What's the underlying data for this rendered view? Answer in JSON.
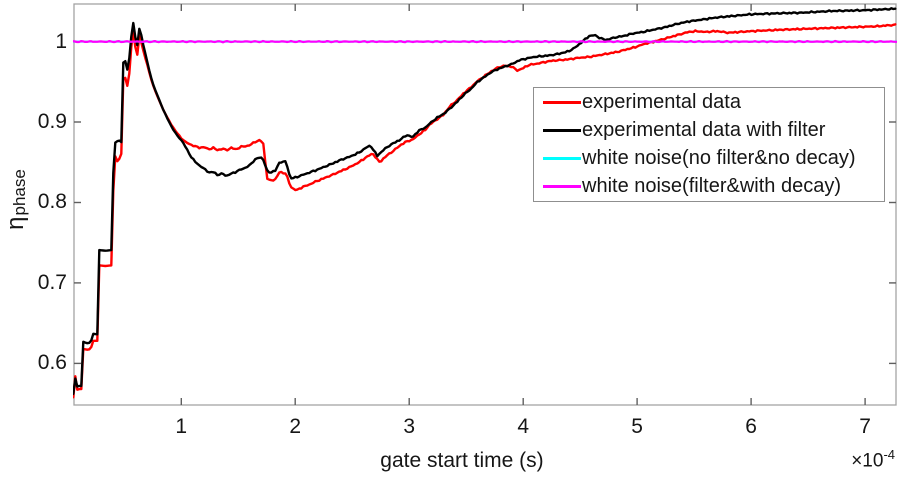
{
  "axes": {
    "xlabel": "gate start time (s)",
    "exponent_prefix": "×10",
    "exponent_power": "-4",
    "ylabel_base": "η",
    "ylabel_sub": "phase",
    "spine_color": "#a3a3a3",
    "tick_color": "#5f5f5f",
    "text_color": "#161616"
  },
  "chart_data": {
    "type": "line",
    "title": "",
    "xlabel": "gate start time (s)",
    "ylabel": "η_phase",
    "x_scale_exponent": -4,
    "xlim": [
      0.05,
      7.28
    ],
    "ylim": [
      0.547,
      1.048
    ],
    "x_ticks": [
      "1",
      "2",
      "3",
      "4",
      "5",
      "6",
      "7"
    ],
    "y_ticks": [
      "0.6",
      "0.7",
      "0.8",
      "0.9",
      "1"
    ],
    "grid": false,
    "legend_position": "right-center",
    "series": [
      {
        "name": "experimental data",
        "color": "#ff0000",
        "points": [
          [
            0.053,
            0.558
          ],
          [
            0.062,
            0.556
          ],
          [
            0.068,
            0.55
          ],
          [
            0.071,
            0.59
          ],
          [
            0.076,
            0.566
          ],
          [
            0.095,
            0.568
          ],
          [
            0.133,
            0.568
          ],
          [
            0.136,
            0.618
          ],
          [
            0.175,
            0.617
          ],
          [
            0.21,
            0.618
          ],
          [
            0.214,
            0.628
          ],
          [
            0.268,
            0.628
          ],
          [
            0.272,
            0.722
          ],
          [
            0.335,
            0.721
          ],
          [
            0.4,
            0.722
          ],
          [
            0.406,
            0.862
          ],
          [
            0.42,
            0.858
          ],
          [
            0.44,
            0.851
          ],
          [
            0.46,
            0.855
          ],
          [
            0.478,
            0.862
          ],
          [
            0.483,
            0.957
          ],
          [
            0.5,
            0.951
          ],
          [
            0.512,
            0.956
          ],
          [
            0.525,
            0.944
          ],
          [
            0.54,
            0.953
          ],
          [
            0.553,
            0.975
          ],
          [
            0.565,
            1.0
          ],
          [
            0.576,
            1.016
          ],
          [
            0.587,
            1.005
          ],
          [
            0.601,
            0.989
          ],
          [
            0.614,
            0.983
          ],
          [
            0.633,
            1.008
          ],
          [
            0.646,
            1.001
          ],
          [
            0.66,
            0.993
          ],
          [
            0.682,
            0.981
          ],
          [
            0.705,
            0.97
          ],
          [
            0.73,
            0.956
          ],
          [
            0.76,
            0.943
          ],
          [
            0.8,
            0.929
          ],
          [
            0.84,
            0.916
          ],
          [
            0.88,
            0.905
          ],
          [
            0.92,
            0.895
          ],
          [
            0.96,
            0.887
          ],
          [
            1.0,
            0.88
          ],
          [
            1.04,
            0.875
          ],
          [
            1.08,
            0.872
          ],
          [
            1.12,
            0.87
          ],
          [
            1.16,
            0.868
          ],
          [
            1.2,
            0.869
          ],
          [
            1.24,
            0.866
          ],
          [
            1.28,
            0.868
          ],
          [
            1.32,
            0.865
          ],
          [
            1.36,
            0.867
          ],
          [
            1.4,
            0.865
          ],
          [
            1.44,
            0.868
          ],
          [
            1.48,
            0.866
          ],
          [
            1.52,
            0.869
          ],
          [
            1.56,
            0.87
          ],
          [
            1.6,
            0.871
          ],
          [
            1.64,
            0.875
          ],
          [
            1.68,
            0.877
          ],
          [
            1.71,
            0.876
          ],
          [
            1.73,
            0.87
          ],
          [
            1.745,
            0.831
          ],
          [
            1.78,
            0.827
          ],
          [
            1.83,
            0.829
          ],
          [
            1.862,
            0.838
          ],
          [
            1.92,
            0.836
          ],
          [
            1.948,
            0.824
          ],
          [
            1.97,
            0.818
          ],
          [
            2.01,
            0.815
          ],
          [
            2.06,
            0.819
          ],
          [
            2.12,
            0.822
          ],
          [
            2.18,
            0.826
          ],
          [
            2.25,
            0.83
          ],
          [
            2.32,
            0.834
          ],
          [
            2.4,
            0.839
          ],
          [
            2.48,
            0.844
          ],
          [
            2.56,
            0.85
          ],
          [
            2.62,
            0.856
          ],
          [
            2.68,
            0.861
          ],
          [
            2.74,
            0.85
          ],
          [
            2.8,
            0.858
          ],
          [
            2.86,
            0.864
          ],
          [
            2.92,
            0.871
          ],
          [
            2.98,
            0.876
          ],
          [
            3.03,
            0.878
          ],
          [
            3.08,
            0.884
          ],
          [
            3.14,
            0.89
          ],
          [
            3.18,
            0.897
          ],
          [
            3.24,
            0.903
          ],
          [
            3.3,
            0.909
          ],
          [
            3.36,
            0.92
          ],
          [
            3.42,
            0.927
          ],
          [
            3.48,
            0.936
          ],
          [
            3.54,
            0.943
          ],
          [
            3.6,
            0.951
          ],
          [
            3.66,
            0.957
          ],
          [
            3.72,
            0.963
          ],
          [
            3.78,
            0.968
          ],
          [
            3.84,
            0.97
          ],
          [
            3.9,
            0.969
          ],
          [
            3.95,
            0.964
          ],
          [
            4.0,
            0.967
          ],
          [
            4.05,
            0.971
          ],
          [
            4.1,
            0.972
          ],
          [
            4.17,
            0.974
          ],
          [
            4.24,
            0.976
          ],
          [
            4.32,
            0.977
          ],
          [
            4.4,
            0.978
          ],
          [
            4.5,
            0.98
          ],
          [
            4.58,
            0.981
          ],
          [
            4.66,
            0.983
          ],
          [
            4.74,
            0.985
          ],
          [
            4.82,
            0.987
          ],
          [
            4.9,
            0.99
          ],
          [
            4.98,
            0.993
          ],
          [
            5.06,
            0.997
          ],
          [
            5.15,
            1.0
          ],
          [
            5.25,
            1.004
          ],
          [
            5.35,
            1.008
          ],
          [
            5.45,
            1.012
          ],
          [
            5.52,
            1.013
          ],
          [
            5.6,
            1.012
          ],
          [
            5.7,
            1.013
          ],
          [
            5.8,
            1.011
          ],
          [
            5.9,
            1.012
          ],
          [
            6.0,
            1.013
          ],
          [
            6.15,
            1.014
          ],
          [
            6.3,
            1.015
          ],
          [
            6.5,
            1.016
          ],
          [
            6.7,
            1.017
          ],
          [
            6.9,
            1.018
          ],
          [
            7.1,
            1.019
          ],
          [
            7.28,
            1.021
          ]
        ]
      },
      {
        "name": "experimental data with filter",
        "color": "#000000",
        "points": [
          [
            0.053,
            0.562
          ],
          [
            0.062,
            0.559
          ],
          [
            0.068,
            0.553
          ],
          [
            0.071,
            0.586
          ],
          [
            0.076,
            0.57
          ],
          [
            0.095,
            0.572
          ],
          [
            0.133,
            0.572
          ],
          [
            0.136,
            0.627
          ],
          [
            0.175,
            0.625
          ],
          [
            0.21,
            0.626
          ],
          [
            0.214,
            0.637
          ],
          [
            0.268,
            0.636
          ],
          [
            0.272,
            0.741
          ],
          [
            0.335,
            0.74
          ],
          [
            0.4,
            0.741
          ],
          [
            0.406,
            0.886
          ],
          [
            0.418,
            0.874
          ],
          [
            0.435,
            0.876
          ],
          [
            0.458,
            0.877
          ],
          [
            0.47,
            0.873
          ],
          [
            0.478,
            0.877
          ],
          [
            0.483,
            0.977
          ],
          [
            0.5,
            0.971
          ],
          [
            0.512,
            0.977
          ],
          [
            0.525,
            0.964
          ],
          [
            0.54,
            0.974
          ],
          [
            0.553,
            0.99
          ],
          [
            0.565,
            1.012
          ],
          [
            0.576,
            1.026
          ],
          [
            0.587,
            1.017
          ],
          [
            0.601,
            1.001
          ],
          [
            0.614,
            0.995
          ],
          [
            0.633,
            1.017
          ],
          [
            0.646,
            1.011
          ],
          [
            0.66,
            1.0
          ],
          [
            0.682,
            0.987
          ],
          [
            0.705,
            0.973
          ],
          [
            0.73,
            0.958
          ],
          [
            0.76,
            0.944
          ],
          [
            0.8,
            0.93
          ],
          [
            0.84,
            0.916
          ],
          [
            0.88,
            0.904
          ],
          [
            0.92,
            0.893
          ],
          [
            0.96,
            0.884
          ],
          [
            1.01,
            0.876
          ],
          [
            1.05,
            0.866
          ],
          [
            1.085,
            0.857
          ],
          [
            1.12,
            0.851
          ],
          [
            1.16,
            0.846
          ],
          [
            1.2,
            0.842
          ],
          [
            1.25,
            0.837
          ],
          [
            1.285,
            0.838
          ],
          [
            1.32,
            0.834
          ],
          [
            1.36,
            0.836
          ],
          [
            1.4,
            0.833
          ],
          [
            1.44,
            0.836
          ],
          [
            1.48,
            0.838
          ],
          [
            1.52,
            0.841
          ],
          [
            1.56,
            0.843
          ],
          [
            1.6,
            0.846
          ],
          [
            1.63,
            0.851
          ],
          [
            1.665,
            0.855
          ],
          [
            1.7,
            0.856
          ],
          [
            1.73,
            0.852
          ],
          [
            1.745,
            0.84
          ],
          [
            1.78,
            0.837
          ],
          [
            1.83,
            0.84
          ],
          [
            1.862,
            0.85
          ],
          [
            1.92,
            0.851
          ],
          [
            1.948,
            0.835
          ],
          [
            1.965,
            0.83
          ],
          [
            2.0,
            0.831
          ],
          [
            2.06,
            0.834
          ],
          [
            2.12,
            0.837
          ],
          [
            2.18,
            0.84
          ],
          [
            2.25,
            0.844
          ],
          [
            2.32,
            0.848
          ],
          [
            2.4,
            0.853
          ],
          [
            2.48,
            0.857
          ],
          [
            2.56,
            0.862
          ],
          [
            2.62,
            0.868
          ],
          [
            2.66,
            0.871
          ],
          [
            2.72,
            0.858
          ],
          [
            2.78,
            0.866
          ],
          [
            2.84,
            0.872
          ],
          [
            2.92,
            0.878
          ],
          [
            2.98,
            0.884
          ],
          [
            3.03,
            0.881
          ],
          [
            3.08,
            0.889
          ],
          [
            3.14,
            0.893
          ],
          [
            3.18,
            0.898
          ],
          [
            3.24,
            0.905
          ],
          [
            3.3,
            0.91
          ],
          [
            3.36,
            0.917
          ],
          [
            3.42,
            0.925
          ],
          [
            3.48,
            0.934
          ],
          [
            3.54,
            0.941
          ],
          [
            3.6,
            0.95
          ],
          [
            3.66,
            0.956
          ],
          [
            3.72,
            0.962
          ],
          [
            3.78,
            0.966
          ],
          [
            3.84,
            0.969
          ],
          [
            3.9,
            0.972
          ],
          [
            3.97,
            0.977
          ],
          [
            4.03,
            0.979
          ],
          [
            4.1,
            0.981
          ],
          [
            4.17,
            0.982
          ],
          [
            4.24,
            0.983
          ],
          [
            4.32,
            0.985
          ],
          [
            4.4,
            0.988
          ],
          [
            4.46,
            0.993
          ],
          [
            4.52,
            1.0
          ],
          [
            4.58,
            1.007
          ],
          [
            4.63,
            1.008
          ],
          [
            4.68,
            1.004
          ],
          [
            4.73,
            1.002
          ],
          [
            4.8,
            1.005
          ],
          [
            4.88,
            1.007
          ],
          [
            4.96,
            1.01
          ],
          [
            5.05,
            1.012
          ],
          [
            5.15,
            1.015
          ],
          [
            5.25,
            1.018
          ],
          [
            5.35,
            1.022
          ],
          [
            5.45,
            1.025
          ],
          [
            5.55,
            1.027
          ],
          [
            5.7,
            1.03
          ],
          [
            5.85,
            1.032
          ],
          [
            6.0,
            1.034
          ],
          [
            6.2,
            1.035
          ],
          [
            6.45,
            1.036
          ],
          [
            6.7,
            1.038
          ],
          [
            7.0,
            1.039
          ],
          [
            7.28,
            1.041
          ]
        ]
      },
      {
        "name": "white noise(no filter&no decay)",
        "color": "#00ffff",
        "points": [
          [
            0.05,
            1.0
          ],
          [
            7.28,
            1.0
          ]
        ]
      },
      {
        "name": "white noise(filter&with decay)",
        "color": "#ff00ff",
        "points": [
          [
            0.05,
            1.0
          ],
          [
            7.28,
            1.0
          ]
        ]
      }
    ]
  }
}
